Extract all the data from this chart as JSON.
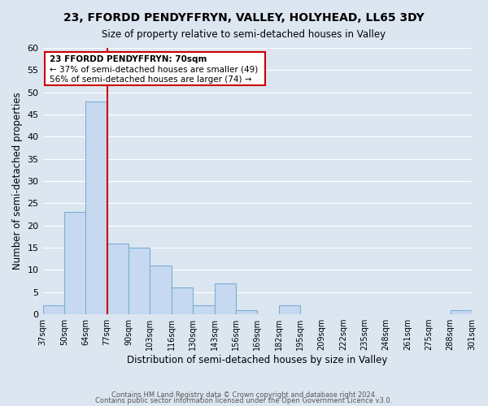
{
  "title": "23, FFORDD PENDYFFRYN, VALLEY, HOLYHEAD, LL65 3DY",
  "subtitle": "Size of property relative to semi-detached houses in Valley",
  "xlabel": "Distribution of semi-detached houses by size in Valley",
  "ylabel": "Number of semi-detached properties",
  "bar_color": "#c6d9f1",
  "bar_edge_color": "#7bafd4",
  "highlight_color": "#cc0000",
  "bin_edges": [
    "37sqm",
    "50sqm",
    "64sqm",
    "77sqm",
    "90sqm",
    "103sqm",
    "116sqm",
    "130sqm",
    "143sqm",
    "156sqm",
    "169sqm",
    "182sqm",
    "195sqm",
    "209sqm",
    "222sqm",
    "235sqm",
    "248sqm",
    "261sqm",
    "275sqm",
    "288sqm",
    "301sqm"
  ],
  "values": [
    2,
    23,
    48,
    16,
    15,
    11,
    6,
    2,
    7,
    1,
    0,
    2,
    0,
    0,
    0,
    0,
    0,
    0,
    0,
    1
  ],
  "highlight_bin_index": 2,
  "ylim": [
    0,
    60
  ],
  "yticks": [
    0,
    5,
    10,
    15,
    20,
    25,
    30,
    35,
    40,
    45,
    50,
    55,
    60
  ],
  "annotation_title": "23 FFORDD PENDYFFRYN: 70sqm",
  "annotation_line1": "← 37% of semi-detached houses are smaller (49)",
  "annotation_line2": "56% of semi-detached houses are larger (74) →",
  "footer_line1": "Contains HM Land Registry data © Crown copyright and database right 2024.",
  "footer_line2": "Contains public sector information licensed under the Open Government Licence v3.0.",
  "grid_color": "#ffffff",
  "background_color": "#dce6f1"
}
